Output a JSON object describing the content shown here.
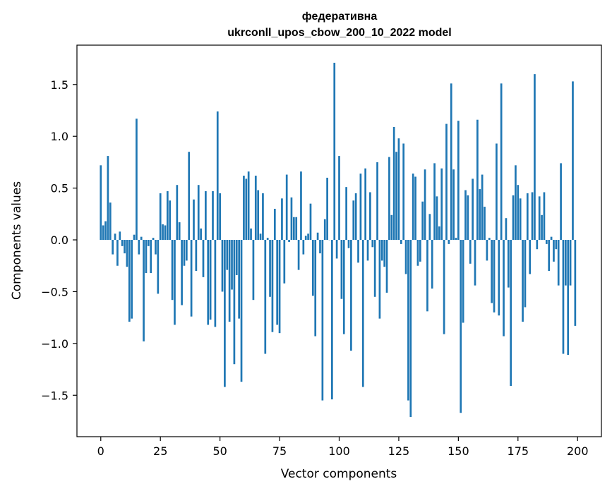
{
  "chart_data": {
    "type": "bar",
    "title_lines": [
      "федеративна",
      "ukrconll_upos_cbow_200_10_2022 model"
    ],
    "xlabel": "Vector components",
    "ylabel": "Components values",
    "xlim": [
      -10,
      210
    ],
    "ylim": [
      -1.9,
      1.88
    ],
    "xticks": [
      0,
      25,
      50,
      75,
      100,
      125,
      150,
      175,
      200
    ],
    "yticks": [
      -1.5,
      -1.0,
      -0.5,
      0.0,
      0.5,
      1.0,
      1.5
    ],
    "ytick_labels": [
      "−1.5",
      "−1.0",
      "−0.5",
      "0.0",
      "0.5",
      "1.0",
      "1.5"
    ],
    "bar_color": "#1f77b4",
    "values": [
      0.72,
      0.14,
      0.18,
      0.81,
      0.36,
      -0.14,
      0.06,
      -0.25,
      0.08,
      -0.06,
      -0.13,
      -0.26,
      -0.79,
      -0.76,
      0.05,
      1.17,
      -0.14,
      0.03,
      -0.98,
      -0.32,
      -0.06,
      -0.32,
      0.02,
      -0.14,
      -0.52,
      0.45,
      0.15,
      0.14,
      0.47,
      0.38,
      -0.58,
      -0.82,
      0.53,
      0.17,
      -0.63,
      -0.25,
      -0.2,
      0.85,
      -0.74,
      0.39,
      -0.3,
      0.53,
      0.11,
      -0.36,
      0.47,
      -0.82,
      -0.77,
      0.47,
      -0.84,
      1.24,
      0.45,
      -0.5,
      -1.42,
      -0.29,
      -0.79,
      -0.48,
      -1.2,
      -0.34,
      -0.76,
      -1.37,
      0.62,
      0.59,
      0.66,
      0.11,
      -0.58,
      0.62,
      0.48,
      0.06,
      0.45,
      -1.1,
      0.02,
      -0.55,
      -0.89,
      0.3,
      -0.82,
      -0.9,
      0.4,
      -0.42,
      0.63,
      -0.02,
      0.41,
      0.22,
      0.22,
      -0.29,
      0.66,
      -0.14,
      0.04,
      0.06,
      0.35,
      -0.54,
      -0.93,
      0.07,
      -0.13,
      -1.55,
      0.2,
      0.6,
      0.0,
      -1.54,
      1.71,
      -0.18,
      0.81,
      -0.57,
      -0.91,
      0.51,
      -0.08,
      -1.07,
      0.38,
      0.45,
      -0.22,
      0.64,
      -1.42,
      0.69,
      -0.2,
      0.46,
      -0.07,
      -0.55,
      0.75,
      -0.76,
      -0.2,
      -0.26,
      -0.51,
      0.8,
      0.24,
      1.09,
      0.85,
      0.98,
      -0.04,
      0.93,
      -0.33,
      -1.55,
      -1.71,
      0.64,
      0.61,
      -0.25,
      -0.21,
      0.37,
      0.68,
      -0.69,
      0.25,
      -0.47,
      0.74,
      0.42,
      0.13,
      0.69,
      -0.91,
      1.12,
      -0.04,
      1.51,
      0.68,
      0.02,
      1.15,
      -1.67,
      -0.8,
      0.48,
      0.43,
      -0.23,
      0.59,
      -0.44,
      1.16,
      0.49,
      0.63,
      0.32,
      -0.2,
      0.02,
      -0.61,
      -0.7,
      0.93,
      -0.73,
      1.51,
      -0.93,
      0.21,
      -0.46,
      -1.41,
      0.43,
      0.72,
      0.53,
      0.4,
      -0.79,
      -0.65,
      0.45,
      -0.33,
      0.46,
      1.6,
      -0.09,
      0.42,
      0.24,
      0.46,
      -0.04,
      -0.3,
      0.03,
      -0.21,
      -0.09,
      -0.44,
      0.74,
      -1.1,
      -0.44,
      -1.11,
      -0.44,
      1.53,
      -0.83
    ]
  }
}
